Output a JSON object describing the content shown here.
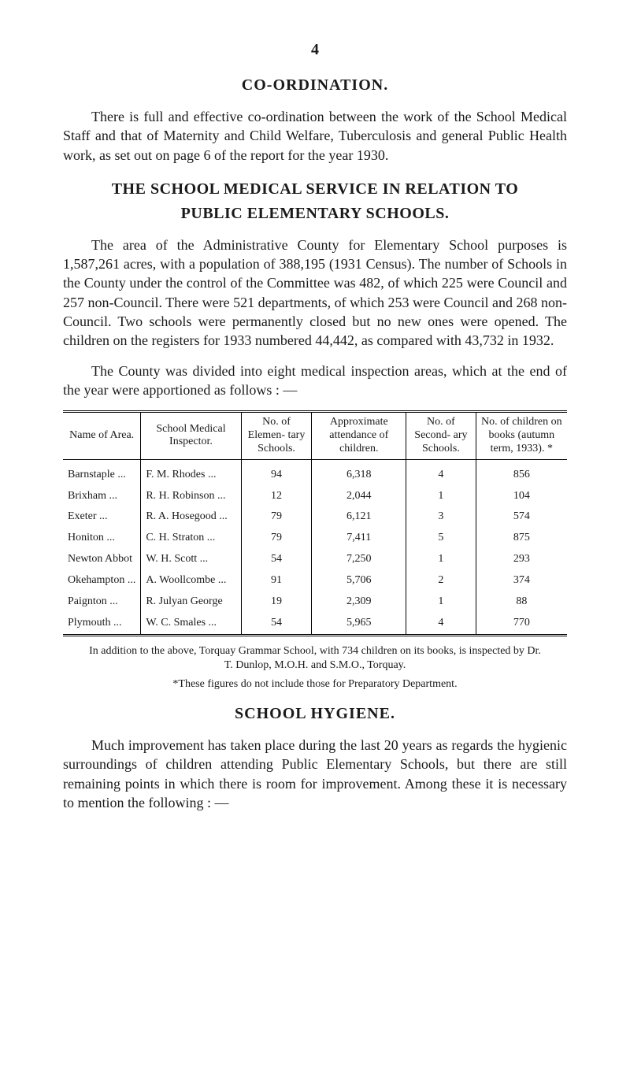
{
  "page_number": "4",
  "headings": {
    "coordination": "CO-ORDINATION.",
    "relation_line1": "THE SCHOOL MEDICAL SERVICE IN RELATION TO",
    "relation_line2": "PUBLIC ELEMENTARY SCHOOLS.",
    "hygiene": "SCHOOL HYGIENE."
  },
  "paragraphs": {
    "p1": "There is full and effective co-ordination between the work of the School Medical Staff and that of Maternity and Child Welfare, Tuberculosis and general Public Health work, as set out on page 6 of the report for the year 1930.",
    "p2": "The area of the Administrative County for Elementary School purposes is 1,587,261 acres, with a population of 388,195 (1931 Census). The number of Schools in the County under the control of the Committee was 482, of which 225 were Council and 257 non-Council. There were 521 departments, of which 253 were Council and 268 non-Council. Two schools were permanently closed but no new ones were opened. The children on the registers for 1933 numbered 44,442, as compared with 43,732 in 1932.",
    "p3": "The County was divided into eight medical inspection areas, which at the end of the year were apportioned as follows : —",
    "p4": "Much improvement has taken place during the last 20 years as regards the hygienic surroundings of children attending Public Elementary Schools, but there are still remaining points in which there is room for improvement. Among these it is necessary to mention the following : —"
  },
  "table": {
    "columns": {
      "c0": "Name of Area.",
      "c1": "School Medical Inspector.",
      "c2": "No. of Elemen- tary Schools.",
      "c3": "Approximate attendance of children.",
      "c4": "No. of Second- ary Schools.",
      "c5": "No. of children on books (autumn term, 1933). *"
    },
    "rows": [
      {
        "area": "Barnstaple   ...",
        "inspector": "F. M. Rhodes   ...",
        "elem": "94",
        "attend": "6,318",
        "sec": "4",
        "books": "856"
      },
      {
        "area": "Brixham     ...",
        "inspector": "R. H. Robinson ...",
        "elem": "12",
        "attend": "2,044",
        "sec": "1",
        "books": "104"
      },
      {
        "area": "Exeter        ...",
        "inspector": "R. A. Hosegood ...",
        "elem": "79",
        "attend": "6,121",
        "sec": "3",
        "books": "574"
      },
      {
        "area": "Honiton      ...",
        "inspector": "C. H. Straton   ...",
        "elem": "79",
        "attend": "7,411",
        "sec": "5",
        "books": "875"
      },
      {
        "area": "Newton Abbot",
        "inspector": "W. H. Scott     ...",
        "elem": "54",
        "attend": "7,250",
        "sec": "1",
        "books": "293"
      },
      {
        "area": "Okehampton ...",
        "inspector": "A. Woollcombe  ...",
        "elem": "91",
        "attend": "5,706",
        "sec": "2",
        "books": "374"
      },
      {
        "area": "Paignton     ...",
        "inspector": "R. Julyan George",
        "elem": "19",
        "attend": "2,309",
        "sec": "1",
        "books": "88"
      },
      {
        "area": "Plymouth    ...",
        "inspector": "W. C. Smales   ...",
        "elem": "54",
        "attend": "5,965",
        "sec": "4",
        "books": "770"
      }
    ]
  },
  "footnotes": {
    "f1": "In addition to the above, Torquay Grammar School, with 734 children on its books, is inspected by Dr. T. Dunlop, M.O.H. and S.M.O., Torquay.",
    "f2": "*These figures do not include those for Preparatory Department."
  }
}
